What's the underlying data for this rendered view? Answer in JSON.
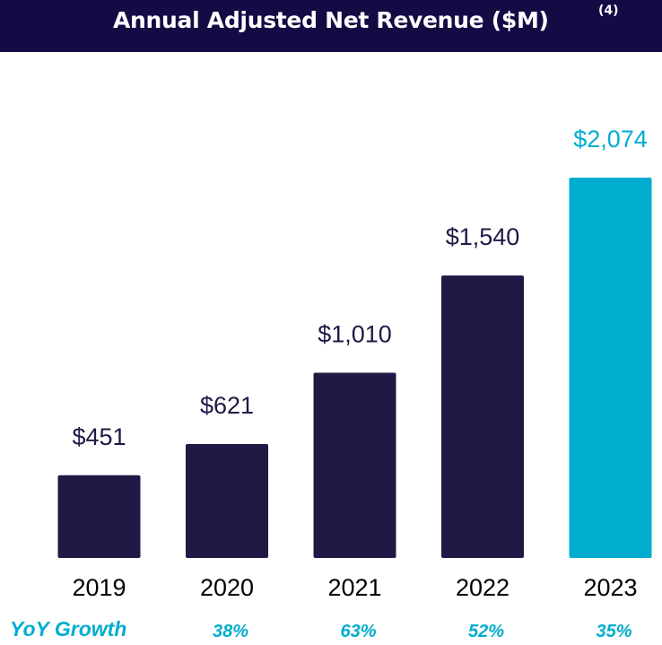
{
  "header": {
    "title": "Annual Adjusted Net Revenue ($M)",
    "footnote": "(4)"
  },
  "colors": {
    "header_bg": "#140b45",
    "bar_default": "#211845",
    "bar_highlight": "#00adcf",
    "label_default": "#211845",
    "growth": "#00adcf"
  },
  "chart_data": {
    "type": "bar",
    "title": "Annual Adjusted Net Revenue ($M)",
    "xlabel": "",
    "ylabel": "",
    "categories": [
      "2019",
      "2020",
      "2021",
      "2022",
      "2023"
    ],
    "values": [
      451,
      621,
      1010,
      1540,
      2074
    ],
    "value_labels": [
      "$451",
      "$621",
      "$1,010",
      "$1,540",
      "$2,074"
    ],
    "highlight_index": 4,
    "ylim": [
      0,
      2074
    ],
    "grid": false,
    "yoy_growth": {
      "label": "YoY Growth",
      "values": [
        "",
        "38%",
        "63%",
        "52%",
        "35%"
      ]
    }
  }
}
